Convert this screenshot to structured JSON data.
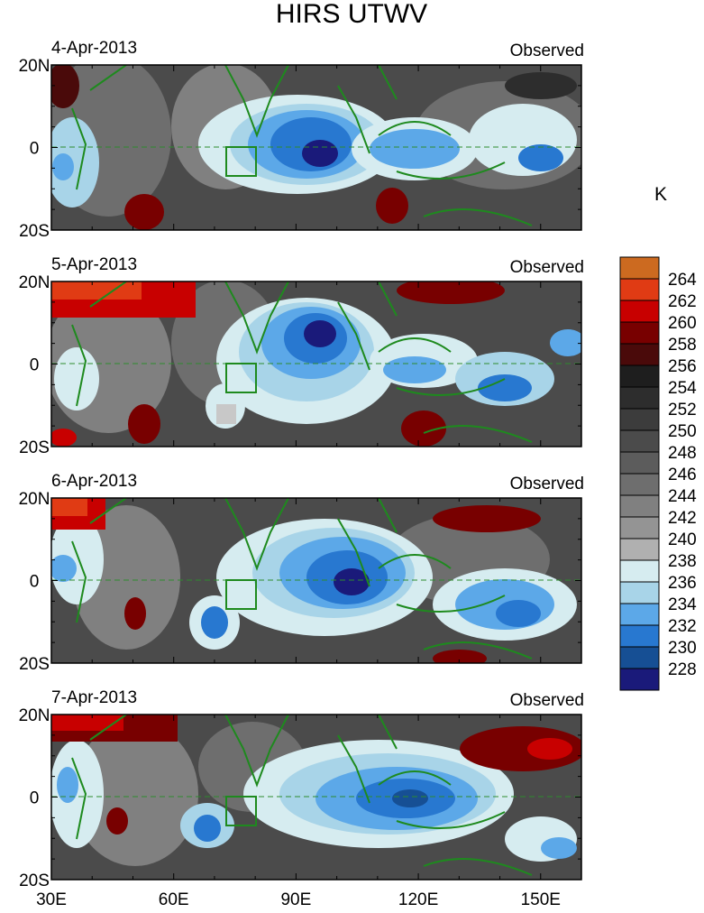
{
  "chart_data": {
    "type": "heatmap",
    "title": "HIRS UTWV",
    "unit": "K",
    "x_axis": {
      "range": [
        30,
        160
      ],
      "ticks": [
        30,
        60,
        90,
        120,
        150
      ],
      "tick_labels": [
        "30E",
        "60E",
        "90E",
        "120E",
        "150E"
      ]
    },
    "y_axis": {
      "range": [
        -20,
        20
      ],
      "ticks": [
        20,
        0,
        -20
      ],
      "tick_labels": [
        "20N",
        "0",
        "20S"
      ]
    },
    "colorbar": {
      "levels": [
        264,
        262,
        260,
        258,
        256,
        254,
        252,
        250,
        248,
        246,
        244,
        242,
        240,
        238,
        236,
        234,
        232,
        230,
        228
      ],
      "level_labels": [
        "264",
        "262",
        "260",
        "258",
        "256",
        "254",
        "252",
        "250",
        "248",
        "246",
        "244",
        "242",
        "240",
        "238",
        "236",
        "234",
        "232",
        "230",
        "228"
      ],
      "colors": [
        "#cc6a20",
        "#e03b14",
        "#c80000",
        "#780000",
        "#4a0a0a",
        "#1e1e1e",
        "#2d2d2d",
        "#3c3c3c",
        "#4b4b4b",
        "#5c5c5c",
        "#6e6e6e",
        "#808080",
        "#949494",
        "#b0b0b0",
        "#d6ecf0",
        "#a8d4e8",
        "#5ca8e8",
        "#2878d0",
        "#164f94",
        "#1a1a7a"
      ]
    },
    "panels": [
      {
        "date": "4-Apr-2013",
        "label": "Observed"
      },
      {
        "date": "5-Apr-2013",
        "label": "Observed"
      },
      {
        "date": "6-Apr-2013",
        "label": "Observed"
      },
      {
        "date": "7-Apr-2013",
        "label": "Observed"
      }
    ],
    "box_region": {
      "lon": [
        73,
        80
      ],
      "lat": [
        -8,
        0
      ]
    }
  }
}
